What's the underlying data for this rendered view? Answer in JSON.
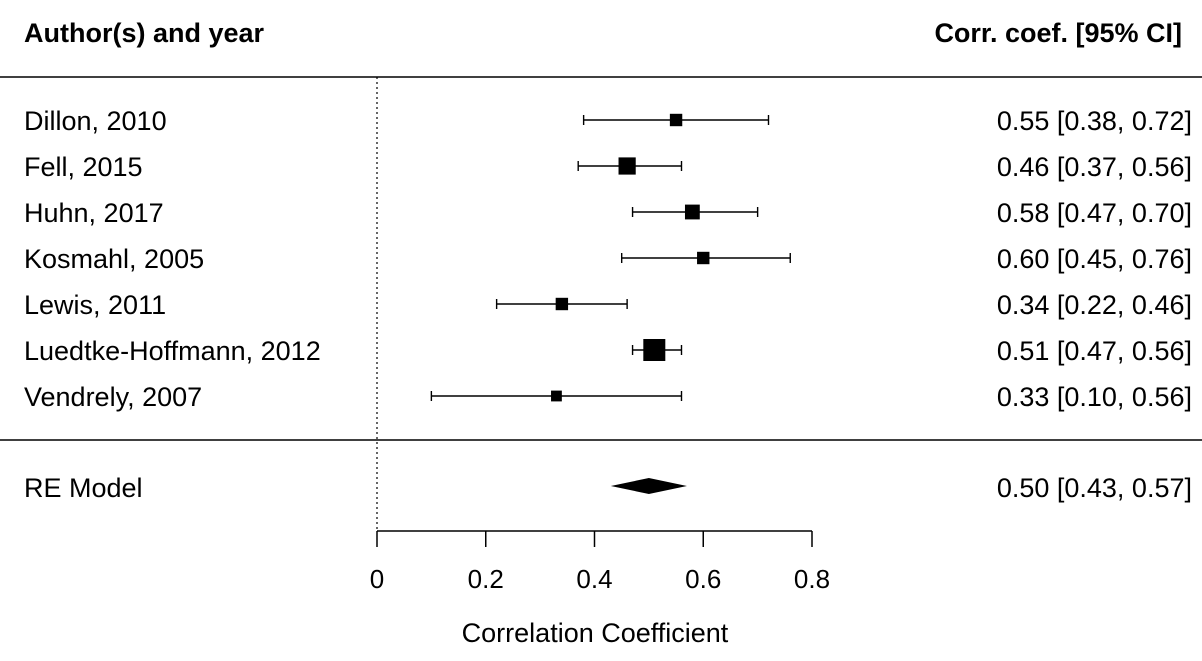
{
  "chart_data": {
    "type": "forest",
    "header": {
      "left": "Author(s) and year",
      "right": "Corr. coef. [95% CI]"
    },
    "studies": [
      {
        "label": "Dillon, 2010",
        "estimate": 0.55,
        "ci_low": 0.38,
        "ci_high": 0.72,
        "ci_text": "0.55 [0.38, 0.72]",
        "weight": 0.4
      },
      {
        "label": "Fell, 2015",
        "estimate": 0.46,
        "ci_low": 0.37,
        "ci_high": 0.56,
        "ci_text": "0.46 [0.37, 0.56]",
        "weight": 0.7
      },
      {
        "label": "Huhn, 2017",
        "estimate": 0.58,
        "ci_low": 0.47,
        "ci_high": 0.7,
        "ci_text": "0.58 [0.47, 0.70]",
        "weight": 0.55
      },
      {
        "label": "Kosmahl, 2005",
        "estimate": 0.6,
        "ci_low": 0.45,
        "ci_high": 0.76,
        "ci_text": "0.60 [0.45, 0.76]",
        "weight": 0.4
      },
      {
        "label": "Lewis, 2011",
        "estimate": 0.34,
        "ci_low": 0.22,
        "ci_high": 0.46,
        "ci_text": "0.34 [0.22, 0.46]",
        "weight": 0.4
      },
      {
        "label": "Luedtke-Hoffmann, 2012",
        "estimate": 0.51,
        "ci_low": 0.47,
        "ci_high": 0.56,
        "ci_text": "0.51 [0.47, 0.56]",
        "weight": 1.0
      },
      {
        "label": "Vendrely, 2007",
        "estimate": 0.33,
        "ci_low": 0.1,
        "ci_high": 0.56,
        "ci_text": "0.33 [0.10, 0.56]",
        "weight": 0.3
      }
    ],
    "summary": {
      "label": "RE Model",
      "estimate": 0.5,
      "ci_low": 0.43,
      "ci_high": 0.57,
      "ci_text": "0.50 [0.43, 0.57]"
    },
    "x_ticks": [
      0,
      0.2,
      0.4,
      0.6,
      0.8
    ],
    "x_tick_labels": [
      "0",
      "0.2",
      "0.4",
      "0.6",
      "0.8"
    ],
    "xlim": [
      0,
      0.8
    ],
    "xlabel": "Correlation Coefficient",
    "reference_line": 0
  }
}
